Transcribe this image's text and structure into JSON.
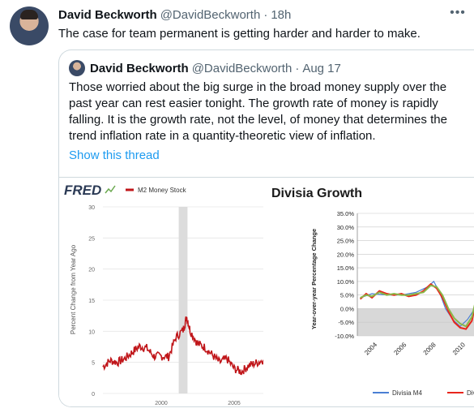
{
  "tweet": {
    "author_name": "David Beckworth",
    "handle": "@DavidBeckworth",
    "separator": "·",
    "time": "18h",
    "text": "The case for team permanent is getting harder and harder to make."
  },
  "quoted_tweet": {
    "author_name": "David Beckworth",
    "handle": "@DavidBeckworth",
    "separator": "·",
    "date": "Aug 17",
    "text": "Those worried about the big surge in the broad money supply over the past year can rest easier tonight. The growth rate of money is rapidly falling. It is the growth rate, not the level, of money that determines the trend inflation rate in a quantity-theoretic view of inflation.",
    "show_thread_label": "Show this thread"
  },
  "colors": {
    "link": "#1d9bf0",
    "fred_line": "#c0161a",
    "divisia_m4": "#4a7fd4",
    "divisia_red": "#e8261c",
    "divisia_green": "#8ab84a"
  },
  "chart_data": [
    {
      "type": "line",
      "title": "",
      "brand": "FRED",
      "ylabel": "Percent Change from Year Ago",
      "ylim": [
        0,
        30
      ],
      "y_ticks": [
        "0",
        "5",
        "10",
        "15",
        "20",
        "25",
        "30"
      ],
      "x_ticks": [
        "2000",
        "2005"
      ],
      "xlim": [
        1996,
        2007
      ],
      "series": [
        {
          "name": "M2 Money Stock",
          "x": [
            1996,
            1996.5,
            1997,
            1997.5,
            1998,
            1998.5,
            1999,
            1999.5,
            2000,
            2000.5,
            2001,
            2001.5,
            2001.75,
            2002,
            2002.5,
            2003,
            2003.5,
            2004,
            2004.5,
            2005,
            2005.5,
            2006,
            2006.5,
            2007
          ],
          "values": [
            4.3,
            5.3,
            5.0,
            5.6,
            6.6,
            7.6,
            7.3,
            6.0,
            6.0,
            5.9,
            9.0,
            10.2,
            12.3,
            10.0,
            8.0,
            7.4,
            6.2,
            5.0,
            5.6,
            4.0,
            3.5,
            4.5,
            4.9,
            5.4
          ]
        }
      ],
      "recession_band": [
        2001.2,
        2001.8
      ]
    },
    {
      "type": "line",
      "title": "Divisia Growth",
      "ylabel": "Year-over-year Percentage Change",
      "ylim": [
        -10,
        35
      ],
      "y_ticks": [
        "35.0%",
        "30.0%",
        "25.0%",
        "20.0%",
        "15.0%",
        "10.0%",
        "5.0%",
        "0.0%",
        "-5.0%",
        "-10.0%"
      ],
      "x_ticks": [
        "2004",
        "2006",
        "2008",
        "2010"
      ],
      "xlim": [
        2003,
        2011
      ],
      "series": [
        {
          "name": "Divisia M4",
          "x": [
            2003.2,
            2004,
            2005,
            2006,
            2007,
            2007.8,
            2008.2,
            2008.6,
            2009,
            2009.5,
            2010,
            2010.5,
            2011
          ],
          "values": [
            4.0,
            5.5,
            5.0,
            5.0,
            6.0,
            8.0,
            10.0,
            6.0,
            0.0,
            -4.0,
            -6.5,
            -4.0,
            0.0
          ]
        },
        {
          "name": "Divi",
          "x": [
            2003.2,
            2003.6,
            2004,
            2004.5,
            2005,
            2005.5,
            2006,
            2006.5,
            2007,
            2007.5,
            2008,
            2008.4,
            2008.8,
            2009.2,
            2009.6,
            2010,
            2010.4,
            2010.8,
            2011
          ],
          "values": [
            3.5,
            5.5,
            4.0,
            6.5,
            5.5,
            5.0,
            5.5,
            4.5,
            5.0,
            6.5,
            9.0,
            7.5,
            4.0,
            -1.0,
            -5.0,
            -7.0,
            -7.5,
            -4.5,
            0.5
          ]
        },
        {
          "x": [
            2003.2,
            2003.6,
            2004,
            2004.5,
            2005,
            2005.5,
            2006,
            2006.5,
            2007,
            2007.5,
            2008,
            2008.4,
            2008.8,
            2009.2,
            2009.6,
            2010,
            2010.4,
            2010.8,
            2011
          ],
          "values": [
            4.0,
            5.0,
            4.5,
            6.0,
            5.0,
            5.5,
            5.0,
            5.0,
            5.5,
            6.0,
            8.5,
            8.0,
            5.0,
            0.0,
            -3.5,
            -5.5,
            -6.5,
            -3.0,
            1.5
          ]
        }
      ],
      "legend_labels": [
        "Divisia M4",
        "Divi"
      ]
    }
  ]
}
